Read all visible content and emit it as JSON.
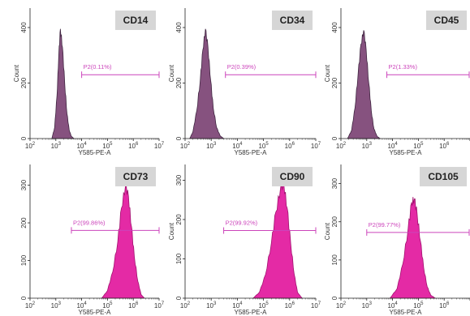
{
  "figure": {
    "colors": {
      "top_fill": "#86527f",
      "top_stroke": "#3f2540",
      "bottom_fill": "#e42aa5",
      "bottom_stroke": "#a1126f",
      "gate": "#cc44bb",
      "label_box": "#d6d6d6"
    }
  },
  "chart_data": [
    {
      "type": "area",
      "title": "CD14",
      "xlabel": "Y585-PE-A",
      "ylabel": "Count",
      "x_scale": "log",
      "xlim": [
        100,
        10000000
      ],
      "x_ticks": [
        100,
        1000,
        10000,
        100000,
        1000000,
        10000000
      ],
      "ylim": [
        0,
        470
      ],
      "y_ticks": [
        0,
        200,
        400
      ],
      "series": [
        {
          "x": [
            700,
            900,
            1100,
            1300,
            1500,
            1800,
            2200,
            2700,
            3300,
            4000,
            5000
          ],
          "values": [
            0,
            40,
            150,
            300,
            395,
            330,
            200,
            90,
            30,
            8,
            0
          ]
        }
      ],
      "gate": {
        "label": "P2(0.11%)",
        "x_start": 10000,
        "x_end": 10000000,
        "y": 230
      }
    },
    {
      "type": "area",
      "title": "CD34",
      "xlabel": "Y585-PE-A",
      "ylabel": "Count",
      "x_scale": "log",
      "xlim": [
        100,
        10000000
      ],
      "x_ticks": [
        100,
        1000,
        10000,
        100000,
        1000000,
        10000000
      ],
      "ylim": [
        0,
        470
      ],
      "y_ticks": [
        0,
        200,
        400
      ],
      "series": [
        {
          "x": [
            150,
            200,
            280,
            380,
            480,
            600,
            750,
            950,
            1200,
            1600,
            2200,
            3000
          ],
          "values": [
            0,
            25,
            100,
            210,
            320,
            395,
            330,
            210,
            110,
            40,
            10,
            0
          ]
        }
      ],
      "gate": {
        "label": "P2(0.39%)",
        "x_start": 3500,
        "x_end": 10000000,
        "y": 230
      }
    },
    {
      "type": "area",
      "title": "CD45",
      "xlabel": "Y585-PE-A",
      "ylabel": "Count",
      "x_scale": "log",
      "xlim": [
        100,
        10000000
      ],
      "x_ticks": [
        100,
        1000,
        10000,
        100000,
        1000000,
        10000000
      ],
      "ylim": [
        0,
        470
      ],
      "y_ticks": [
        0,
        200,
        400
      ],
      "series": [
        {
          "x": [
            180,
            260,
            350,
            460,
            600,
            760,
            950,
            1200,
            1500,
            1900,
            2500,
            3300
          ],
          "values": [
            0,
            30,
            110,
            230,
            340,
            390,
            320,
            200,
            100,
            35,
            8,
            0
          ]
        }
      ],
      "gate": {
        "label": "P2(1.33%)",
        "x_start": 6000,
        "x_end": 10000000,
        "y": 230
      }
    },
    {
      "type": "area",
      "title": "CD73",
      "xlabel": "Y585-PE-A",
      "ylabel": "",
      "x_scale": "log",
      "xlim": [
        100,
        10000000
      ],
      "x_ticks": [
        100,
        1000,
        10000,
        100000,
        1000000,
        10000000
      ],
      "ylim": [
        0,
        355
      ],
      "y_ticks": [
        0,
        100,
        200,
        300
      ],
      "series": [
        {
          "x": [
            60000,
            100000,
            160000,
            250000,
            350000,
            500000,
            650000,
            850000,
            1100000,
            1500000,
            2000000,
            2700000
          ],
          "values": [
            0,
            20,
            70,
            150,
            240,
            300,
            270,
            190,
            110,
            45,
            10,
            0
          ]
        }
      ],
      "gate": {
        "label": "P2(99.86%)",
        "x_start": 4000,
        "x_end": 10000000,
        "y": 180
      }
    },
    {
      "type": "area",
      "title": "CD90",
      "xlabel": "Y585-PE-A",
      "ylabel": "Count",
      "x_scale": "log",
      "xlim": [
        100,
        10000000
      ],
      "x_ticks": [
        100,
        1000,
        10000,
        100000,
        1000000,
        10000000
      ],
      "ylim": [
        0,
        340
      ],
      "y_ticks": [
        0,
        100,
        200,
        300
      ],
      "series": [
        {
          "x": [
            40000,
            70000,
            120000,
            200000,
            300000,
            450000,
            600000,
            800000,
            1100000,
            1500000,
            2000000,
            3000000
          ],
          "values": [
            0,
            15,
            60,
            140,
            220,
            280,
            290,
            230,
            140,
            60,
            15,
            0
          ]
        }
      ],
      "gate": {
        "label": "P2(99.92%)",
        "x_start": 3000,
        "x_end": 10000000,
        "y": 172
      }
    },
    {
      "type": "area",
      "title": "CD105",
      "xlabel": "Y585-PE-A",
      "ylabel": "Count",
      "x_scale": "log",
      "xlim": [
        100,
        10000000
      ],
      "x_ticks": [
        100,
        1000,
        10000,
        100000,
        1000000,
        10000000
      ],
      "ylim": [
        0,
        350
      ],
      "y_ticks": [
        0,
        100,
        200,
        300
      ],
      "series": [
        {
          "x": [
            8000,
            15000,
            25000,
            40000,
            55000,
            70000,
            90000,
            120000,
            160000,
            220000,
            300000,
            450000
          ],
          "values": [
            0,
            25,
            90,
            180,
            250,
            260,
            220,
            150,
            80,
            30,
            8,
            0
          ]
        }
      ],
      "gate": {
        "label": "P2(99.77%)",
        "x_start": 1000,
        "x_end": 10000000,
        "y": 172
      }
    }
  ]
}
